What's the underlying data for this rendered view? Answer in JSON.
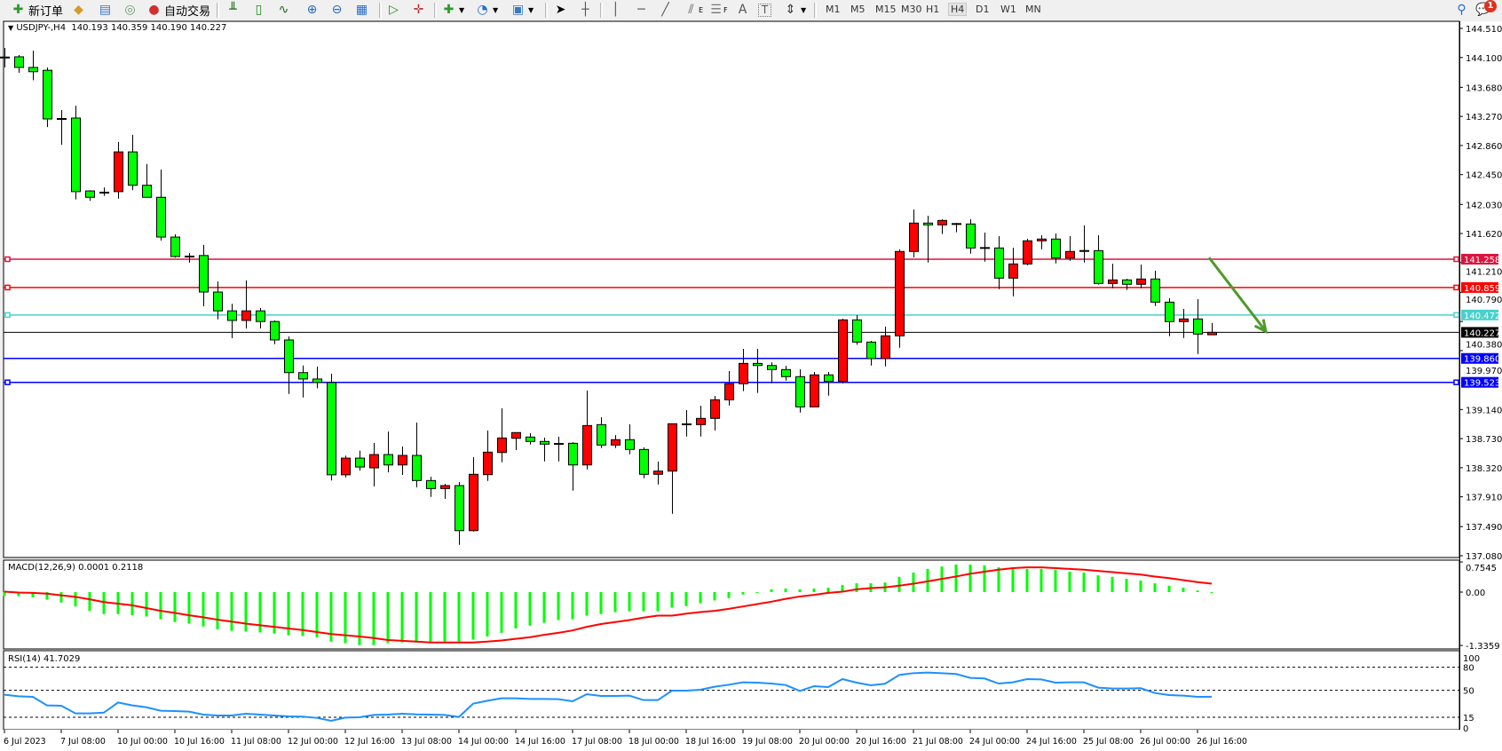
{
  "toolbar": {
    "new_order_label": "新订单",
    "auto_trade_label": "自动交易",
    "icons": [
      "new-order-icon",
      "market-watch-icon",
      "navigator-icon",
      "signals-icon",
      "auto-trading-icon",
      "bar-chart-icon",
      "candlestick-icon",
      "line-chart-icon",
      "zoom-in-icon",
      "zoom-out-icon",
      "tile-windows-icon",
      "chart-shift-icon",
      "auto-scroll-icon",
      "indicators-icon",
      "periods-icon",
      "templates-icon",
      "cursor-icon",
      "crosshair-icon",
      "vertical-line-icon",
      "horizontal-line-icon",
      "trendline-icon",
      "equidistant-channel-icon",
      "fibonacci-icon",
      "text-icon",
      "text-label-icon",
      "arrows-icon"
    ],
    "fibo_e": "E",
    "fibo_f": "F",
    "text_tool": "A",
    "label_tool": "T",
    "timeframes": [
      "M1",
      "M5",
      "M15",
      "M30",
      "H1",
      "H4",
      "D1",
      "W1",
      "MN"
    ],
    "active_timeframe": "H4",
    "notification_count": "1"
  },
  "chart": {
    "symbol_info": "USDJPY-,H4  140.193 140.359 140.190 140.227",
    "bid_price": "140.227",
    "bid_value": 140.227,
    "colors": {
      "bull": "#ff0000",
      "bear": "#00ff00",
      "doji": "#000000",
      "outline": "#000000",
      "arrow": "#4e9a2a"
    },
    "price_ticks": [
      "144.510",
      "144.100",
      "143.680",
      "143.270",
      "142.860",
      "142.450",
      "142.030",
      "141.620",
      "141.210",
      "140.790",
      "140.380",
      "139.970",
      "139.140",
      "138.730",
      "138.320",
      "137.910",
      "137.490",
      "137.080"
    ],
    "horizontal_lines": [
      {
        "label": "141.258",
        "value": 141.258,
        "color": "#dc143c",
        "marker": true
      },
      {
        "label": "140.859",
        "value": 140.859,
        "color": "#ff0000",
        "marker": true
      },
      {
        "label": "140.472",
        "value": 140.472,
        "color": "#48d1cc",
        "marker": true
      },
      {
        "label": "139.860",
        "value": 139.86,
        "color": "#0000ff",
        "marker": false
      },
      {
        "label": "139.523",
        "value": 139.523,
        "color": "#0000ff",
        "marker": true
      }
    ],
    "arrow": {
      "from_price": 141.28,
      "to_price": 140.24,
      "direction": "down"
    }
  },
  "chart_data": {
    "type": "candlestick",
    "symbol": "USDJPY-",
    "timeframe": "H4",
    "ylim": [
      137.08,
      144.51
    ],
    "x_tick_labels": [
      "6 Jul 2023",
      "7 Jul 08:00",
      "10 Jul 00:00",
      "10 Jul 16:00",
      "11 Jul 08:00",
      "12 Jul 00:00",
      "12 Jul 16:00",
      "13 Jul 08:00",
      "14 Jul 00:00",
      "14 Jul 16:00",
      "17 Jul 08:00",
      "18 Jul 00:00",
      "18 Jul 16:00",
      "19 Jul 08:00",
      "20 Jul 00:00",
      "20 Jul 16:00",
      "21 Jul 08:00",
      "24 Jul 00:00",
      "24 Jul 16:00",
      "25 Jul 08:00",
      "26 Jul 00:00",
      "26 Jul 16:00"
    ],
    "ohlc": [
      [
        144.1,
        144.235,
        143.96,
        144.1
      ],
      [
        144.11,
        144.135,
        143.885,
        143.96
      ],
      [
        143.96,
        144.197,
        143.78,
        143.9
      ],
      [
        143.92,
        143.96,
        143.12,
        143.234
      ],
      [
        143.234,
        143.36,
        142.87,
        143.234
      ],
      [
        143.247,
        143.42,
        142.1,
        142.21
      ],
      [
        142.22,
        142.23,
        142.08,
        142.13
      ],
      [
        142.196,
        142.27,
        142.15,
        142.196
      ],
      [
        142.21,
        142.91,
        142.11,
        142.77
      ],
      [
        142.77,
        143.01,
        142.23,
        142.3
      ],
      [
        142.3,
        142.6,
        142.13,
        142.13
      ],
      [
        142.13,
        142.52,
        141.52,
        141.57
      ],
      [
        141.57,
        141.61,
        141.28,
        141.295
      ],
      [
        141.295,
        141.345,
        141.21,
        141.295
      ],
      [
        141.31,
        141.46,
        140.595,
        140.795
      ],
      [
        140.795,
        140.945,
        140.41,
        140.53
      ],
      [
        140.53,
        140.63,
        140.145,
        140.395
      ],
      [
        140.395,
        140.96,
        140.28,
        140.53
      ],
      [
        140.53,
        140.57,
        140.28,
        140.38
      ],
      [
        140.38,
        140.395,
        140.06,
        140.12
      ],
      [
        140.12,
        140.17,
        139.36,
        139.66
      ],
      [
        139.66,
        139.76,
        139.31,
        139.57
      ],
      [
        139.57,
        139.745,
        139.44,
        139.52
      ],
      [
        139.52,
        139.645,
        138.14,
        138.22
      ],
      [
        138.22,
        138.49,
        138.18,
        138.455
      ],
      [
        138.455,
        138.56,
        138.28,
        138.33
      ],
      [
        138.318,
        138.668,
        138.055,
        138.505
      ],
      [
        138.505,
        138.83,
        138.255,
        138.359
      ],
      [
        138.359,
        138.618,
        138.218,
        138.493
      ],
      [
        138.493,
        138.956,
        138.043,
        138.139
      ],
      [
        138.139,
        138.193,
        137.909,
        138.026
      ],
      [
        138.026,
        138.093,
        137.88,
        138.068
      ],
      [
        138.068,
        138.118,
        137.233,
        137.433
      ],
      [
        137.433,
        138.468,
        137.421,
        138.227
      ],
      [
        138.222,
        138.843,
        138.134,
        138.539
      ],
      [
        138.534,
        139.156,
        138.397,
        138.739
      ],
      [
        138.734,
        138.815,
        138.568,
        138.815
      ],
      [
        138.752,
        138.806,
        138.647,
        138.69
      ],
      [
        138.69,
        138.743,
        138.409,
        138.652
      ],
      [
        138.656,
        138.756,
        138.409,
        138.656
      ],
      [
        138.664,
        138.68,
        137.997,
        138.359
      ],
      [
        138.359,
        139.406,
        138.297,
        138.914
      ],
      [
        138.927,
        139.031,
        138.597,
        138.639
      ],
      [
        138.639,
        138.78,
        138.597,
        138.715
      ],
      [
        138.715,
        138.931,
        138.509,
        138.577
      ],
      [
        138.577,
        138.606,
        138.172,
        138.227
      ],
      [
        138.227,
        138.406,
        138.084,
        138.272
      ],
      [
        138.272,
        138.939,
        137.671,
        138.939
      ],
      [
        138.931,
        139.131,
        138.759,
        138.931
      ],
      [
        138.927,
        139.193,
        138.759,
        139.015
      ],
      [
        139.015,
        139.331,
        138.843,
        139.277
      ],
      [
        139.277,
        139.681,
        139.197,
        139.503
      ],
      [
        139.503,
        139.994,
        139.398,
        139.79
      ],
      [
        139.79,
        139.994,
        139.373,
        139.76
      ],
      [
        139.76,
        139.806,
        139.51,
        139.703
      ],
      [
        139.703,
        139.756,
        139.548,
        139.603
      ],
      [
        139.603,
        139.706,
        139.097,
        139.177
      ],
      [
        139.177,
        139.669,
        139.177,
        139.628
      ],
      [
        139.628,
        139.669,
        139.335,
        139.535
      ],
      [
        139.535,
        140.419,
        139.506,
        140.403
      ],
      [
        140.403,
        140.47,
        140.053,
        140.09
      ],
      [
        140.09,
        140.107,
        139.76,
        139.857
      ],
      [
        139.857,
        140.307,
        139.748,
        140.178
      ],
      [
        140.178,
        141.395,
        140.01,
        141.367
      ],
      [
        141.367,
        141.958,
        141.283,
        141.767
      ],
      [
        141.767,
        141.871,
        141.211,
        141.742
      ],
      [
        141.742,
        141.821,
        141.612,
        141.804
      ],
      [
        141.754,
        141.77,
        141.637,
        141.754
      ],
      [
        141.754,
        141.821,
        141.336,
        141.416
      ],
      [
        141.416,
        141.633,
        141.224,
        141.416
      ],
      [
        141.416,
        141.583,
        140.836,
        140.991
      ],
      [
        140.991,
        141.42,
        140.736,
        141.191
      ],
      [
        141.191,
        141.545,
        141.174,
        141.517
      ],
      [
        141.517,
        141.595,
        141.399,
        141.542
      ],
      [
        141.542,
        141.62,
        141.199,
        141.274
      ],
      [
        141.274,
        141.583,
        141.236,
        141.367
      ],
      [
        141.374,
        141.733,
        141.211,
        141.374
      ],
      [
        141.379,
        141.595,
        140.899,
        140.916
      ],
      [
        140.916,
        141.195,
        140.849,
        140.966
      ],
      [
        140.966,
        140.982,
        140.824,
        140.904
      ],
      [
        140.904,
        141.182,
        140.849,
        140.979
      ],
      [
        140.979,
        141.095,
        140.598,
        140.653
      ],
      [
        140.653,
        140.708,
        140.173,
        140.378
      ],
      [
        140.378,
        140.557,
        140.148,
        140.416
      ],
      [
        140.416,
        140.695,
        139.923,
        140.203
      ],
      [
        140.193,
        140.359,
        140.19,
        140.227
      ]
    ],
    "macd": {
      "label": "MACD(12,26,9) 0.0001 0.2118",
      "axis_ticks": [
        "0.7545",
        "0.00",
        "-1.3359"
      ],
      "ylim": [
        -1.3359,
        0.7545
      ],
      "histogram_color": "#00ff00",
      "signal_color": "#ff0000",
      "histogram": [
        -0.1,
        -0.1,
        -0.13,
        -0.19,
        -0.26,
        -0.36,
        -0.47,
        -0.55,
        -0.55,
        -0.58,
        -0.61,
        -0.68,
        -0.75,
        -0.79,
        -0.86,
        -0.93,
        -0.97,
        -0.99,
        -1.01,
        -1.04,
        -1.08,
        -1.1,
        -1.13,
        -1.24,
        -1.28,
        -1.33,
        -1.33,
        -1.28,
        -1.26,
        -1.26,
        -1.24,
        -1.24,
        -1.24,
        -1.19,
        -1.11,
        -1.02,
        -0.91,
        -0.84,
        -0.77,
        -0.7,
        -0.68,
        -0.59,
        -0.55,
        -0.5,
        -0.48,
        -0.48,
        -0.48,
        -0.39,
        -0.35,
        -0.28,
        -0.21,
        -0.15,
        -0.06,
        -0.01,
        0.07,
        0.09,
        0.07,
        0.09,
        0.11,
        0.18,
        0.22,
        0.22,
        0.24,
        0.38,
        0.49,
        0.58,
        0.64,
        0.69,
        0.69,
        0.67,
        0.62,
        0.58,
        0.58,
        0.58,
        0.56,
        0.51,
        0.49,
        0.42,
        0.38,
        0.33,
        0.29,
        0.22,
        0.16,
        0.11,
        0.04,
        0.0001
      ],
      "signal": [
        0.01,
        -0.01,
        -0.02,
        -0.04,
        -0.08,
        -0.12,
        -0.18,
        -0.25,
        -0.29,
        -0.33,
        -0.4,
        -0.47,
        -0.52,
        -0.58,
        -0.63,
        -0.69,
        -0.74,
        -0.79,
        -0.83,
        -0.87,
        -0.91,
        -0.95,
        -1.0,
        -1.05,
        -1.08,
        -1.11,
        -1.15,
        -1.2,
        -1.22,
        -1.24,
        -1.26,
        -1.26,
        -1.26,
        -1.26,
        -1.24,
        -1.21,
        -1.17,
        -1.13,
        -1.07,
        -1.02,
        -0.96,
        -0.87,
        -0.8,
        -0.75,
        -0.7,
        -0.64,
        -0.59,
        -0.59,
        -0.54,
        -0.5,
        -0.47,
        -0.42,
        -0.36,
        -0.3,
        -0.24,
        -0.17,
        -0.11,
        -0.07,
        -0.02,
        0.01,
        0.07,
        0.1,
        0.12,
        0.16,
        0.21,
        0.27,
        0.33,
        0.39,
        0.46,
        0.51,
        0.56,
        0.6,
        0.62,
        0.62,
        0.6,
        0.58,
        0.56,
        0.53,
        0.5,
        0.47,
        0.44,
        0.39,
        0.35,
        0.3,
        0.25,
        0.2118
      ]
    },
    "rsi": {
      "label": "RSI(14) 41.7029",
      "axis_ticks": [
        "100",
        "80",
        "50",
        "15",
        "0"
      ],
      "levels": [
        80,
        50,
        15
      ],
      "ylim": [
        0,
        100
      ],
      "color": "#1e90ff",
      "values": [
        44.2,
        42.3,
        41.5,
        30.4,
        30,
        20,
        20,
        21,
        34.2,
        30.4,
        28,
        23.5,
        23,
        22.3,
        18.5,
        17.3,
        17.3,
        19.6,
        18.5,
        17.3,
        16.2,
        15.8,
        14.2,
        10.4,
        14.6,
        15,
        18,
        18.5,
        19.6,
        18.8,
        18.5,
        18,
        15.4,
        32.7,
        36.5,
        39.6,
        39.6,
        38.8,
        38.8,
        38.5,
        35.8,
        45,
        42.7,
        42.7,
        43.1,
        37.3,
        37.3,
        49.6,
        49.6,
        50.8,
        54.6,
        57.3,
        60.4,
        60,
        58.8,
        56.9,
        49.2,
        55.4,
        54.2,
        64.6,
        60,
        56.5,
        58.5,
        70,
        72.3,
        73.1,
        72.3,
        71.2,
        66.2,
        65.4,
        58.8,
        60.4,
        64.6,
        64.2,
        60,
        60.4,
        60.4,
        53.5,
        52.3,
        52.3,
        52.7,
        46.5,
        43.8,
        43.1,
        41.5,
        41.7029
      ]
    }
  }
}
